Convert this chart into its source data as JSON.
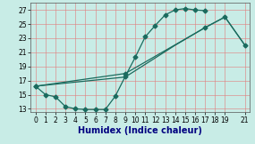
{
  "xlabel": "Humidex (Indice chaleur)",
  "bg_color": "#c8ece6",
  "line_color": "#1a6b5e",
  "grid_color": "#e08080",
  "xlim": [
    -0.5,
    21.5
  ],
  "ylim": [
    12.5,
    28.0
  ],
  "yticks": [
    13,
    15,
    17,
    19,
    21,
    23,
    25,
    27
  ],
  "xticks": [
    0,
    1,
    2,
    3,
    4,
    5,
    6,
    7,
    8,
    9,
    10,
    11,
    12,
    13,
    14,
    15,
    16,
    17,
    18,
    19,
    21
  ],
  "curve1_x": [
    0,
    1,
    2,
    3,
    4,
    5,
    6,
    7,
    8,
    9,
    10,
    11,
    12,
    13,
    14,
    15,
    16,
    17
  ],
  "curve1_y": [
    16.2,
    15.0,
    14.7,
    13.3,
    13.0,
    12.9,
    12.9,
    12.9,
    14.8,
    17.6,
    20.3,
    23.2,
    24.8,
    26.3,
    27.0,
    27.2,
    27.0,
    26.9
  ],
  "curve2_x": [
    0,
    9,
    17,
    19,
    21
  ],
  "curve2_y": [
    16.2,
    18.0,
    24.5,
    26.0,
    22.0
  ],
  "curve3_x": [
    0,
    9,
    14,
    17,
    19,
    21
  ],
  "curve3_y": [
    16.2,
    17.5,
    22.0,
    24.5,
    26.0,
    22.0
  ],
  "marker_size": 2.5,
  "line_width": 0.9,
  "tick_fontsize": 5.5,
  "xlabel_fontsize": 7.0
}
